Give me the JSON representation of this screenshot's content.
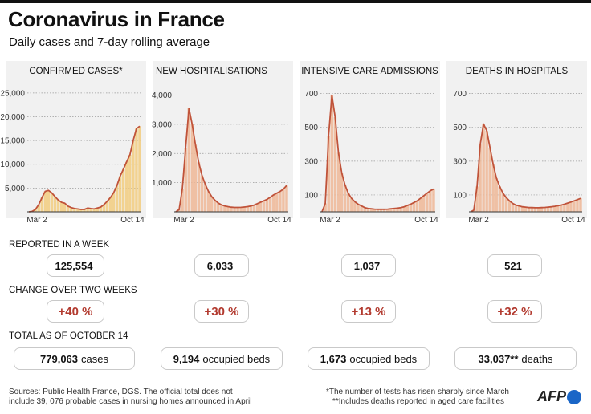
{
  "header": {
    "title": "Coronavirus in France",
    "subtitle": "Daily cases and 7-day rolling average"
  },
  "colors": {
    "line": "#c0533a",
    "bars_cases": "#f2cd7f",
    "bars_other": "#efb797",
    "accent": "#b23a2f"
  },
  "sections": {
    "week": "REPORTED IN A WEEK",
    "change": "CHANGE OVER TWO WEEKS",
    "total": "TOTAL AS OF OCTOBER 14"
  },
  "chart_data": [
    {
      "type": "line",
      "title": "CONFIRMED CASES*",
      "x_start": "Mar 2",
      "x_end": "Oct 14",
      "ylim": [
        0,
        27000
      ],
      "yticks": [
        "5,000",
        "10,000",
        "15,000",
        "20,000",
        "25,000"
      ],
      "ytick_values": [
        5000,
        10000,
        15000,
        20000,
        25000
      ],
      "bar_color": "#f2cd7f",
      "values": [
        0,
        100,
        500,
        1500,
        3000,
        4300,
        4500,
        4000,
        3200,
        2500,
        2000,
        1800,
        1200,
        900,
        700,
        600,
        500,
        500,
        800,
        700,
        600,
        800,
        1000,
        1500,
        2200,
        3000,
        4000,
        5500,
        7500,
        9000,
        10500,
        12000,
        15000,
        17500,
        18000
      ],
      "report_week": "125,554",
      "change": "+40 %",
      "total_value": "779,063",
      "total_unit": "cases"
    },
    {
      "type": "line",
      "title": "NEW HOSPITALISATIONS",
      "x_start": "Mar 2",
      "x_end": "Oct 14",
      "ylim": [
        0,
        4400
      ],
      "yticks": [
        "1,000",
        "2,000",
        "3,000",
        "4,000"
      ],
      "ytick_values": [
        1000,
        2000,
        3000,
        4000
      ],
      "bar_color": "#efb797",
      "values": [
        0,
        80,
        800,
        2200,
        3550,
        3000,
        2300,
        1700,
        1250,
        950,
        700,
        520,
        400,
        300,
        240,
        200,
        180,
        160,
        150,
        150,
        155,
        165,
        180,
        200,
        230,
        280,
        330,
        380,
        430,
        500,
        580,
        640,
        700,
        780,
        900
      ],
      "report_week": "6,033",
      "change": "+30 %",
      "total_value": "9,194",
      "total_unit": "occupied beds"
    },
    {
      "type": "line",
      "title": "INTENSIVE CARE ADMISSIONS",
      "x_start": "Mar 2",
      "x_end": "Oct 14",
      "ylim": [
        0,
        760
      ],
      "yticks": [
        "100",
        "300",
        "500",
        "700"
      ],
      "ytick_values": [
        100,
        300,
        500,
        700
      ],
      "bar_color": "#efb797",
      "values": [
        0,
        50,
        450,
        690,
        560,
        350,
        230,
        160,
        110,
        80,
        60,
        45,
        35,
        25,
        20,
        18,
        16,
        15,
        15,
        15,
        16,
        18,
        20,
        22,
        25,
        30,
        38,
        45,
        55,
        65,
        80,
        95,
        110,
        125,
        135
      ],
      "report_week": "1,037",
      "change": "+13 %",
      "total_value": "1,673",
      "total_unit": "occupied beds"
    },
    {
      "type": "line",
      "title": "DEATHS IN HOSPITALS",
      "x_start": "Mar 2",
      "x_end": "Oct 14",
      "ylim": [
        0,
        760
      ],
      "yticks": [
        "100",
        "300",
        "500",
        "700"
      ],
      "ytick_values": [
        100,
        300,
        500,
        700
      ],
      "bar_color": "#efb797",
      "values": [
        0,
        10,
        150,
        400,
        520,
        480,
        380,
        280,
        200,
        150,
        110,
        85,
        65,
        50,
        40,
        35,
        30,
        28,
        25,
        25,
        24,
        24,
        25,
        26,
        28,
        30,
        33,
        36,
        40,
        45,
        52,
        58,
        65,
        72,
        80
      ],
      "report_week": "521",
      "change": "+32 %",
      "total_value": "33,037**",
      "total_unit": "deaths"
    }
  ],
  "footer": {
    "sources_1": "Sources: Public Health France, DGS.  The official total does not",
    "sources_2": "include 39, 076 probable cases in nursing homes announced in April",
    "note_1": "*The number of tests has risen sharply since March",
    "note_2": "**Includes deaths reported in aged care facilities",
    "logo": "AFP"
  }
}
